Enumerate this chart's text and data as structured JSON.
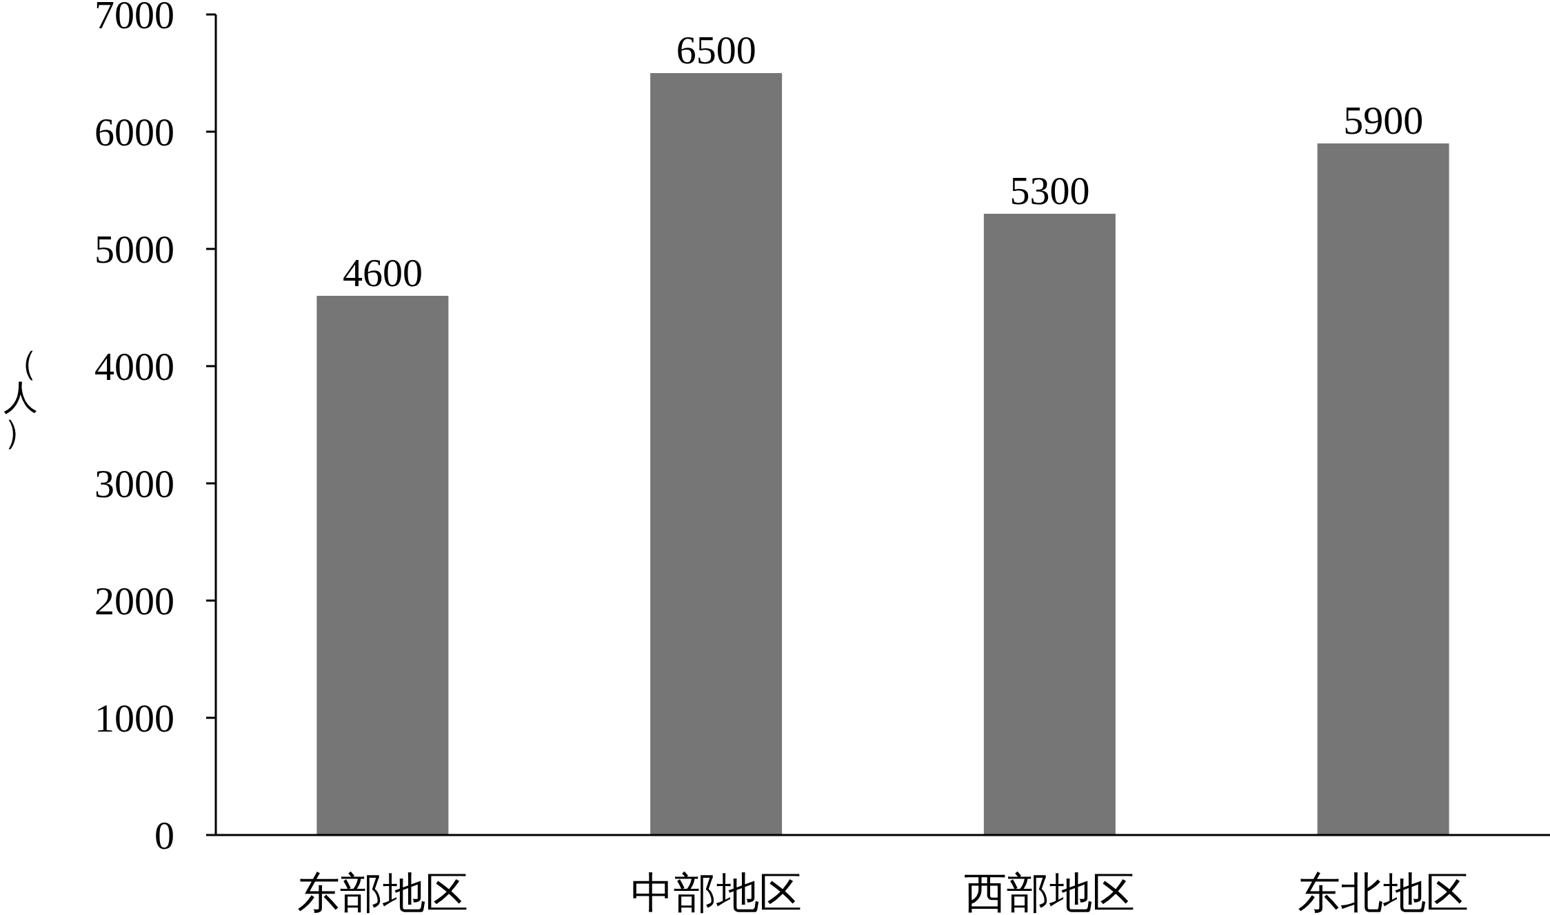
{
  "chart_data": {
    "type": "bar",
    "ylabel": "（人）",
    "categories": [
      "东部地区",
      "中部地区",
      "西部地区",
      "东北地区"
    ],
    "values": [
      4600,
      6500,
      5300,
      5900
    ],
    "color": "#767676",
    "ylim": [
      0,
      7000
    ],
    "yticks": [
      0,
      1000,
      2000,
      3000,
      4000,
      5000,
      6000,
      7000
    ],
    "data_labels": true,
    "grid": false
  }
}
